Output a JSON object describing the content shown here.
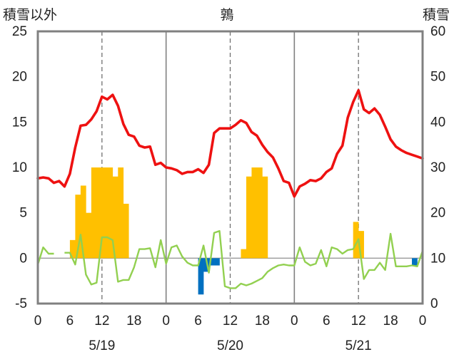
{
  "header": {
    "left_axis_title": "積雪以外",
    "center_title": "鶉",
    "right_axis_title": "積雪"
  },
  "chart_data": {
    "type": "bar+line",
    "title": "鶉",
    "y_left": {
      "label": "積雪以外",
      "lim": [
        -5,
        25
      ],
      "ticks": [
        -5,
        0,
        5,
        10,
        15,
        20,
        25
      ]
    },
    "y_right": {
      "label": "積雪",
      "lim": [
        0,
        60
      ],
      "ticks": [
        0,
        10,
        20,
        30,
        40,
        50,
        60
      ]
    },
    "x": {
      "lim": [
        0,
        72
      ],
      "tick_hours": [
        0,
        6,
        12,
        18,
        24,
        30,
        36,
        42,
        48,
        54,
        60,
        66,
        72
      ],
      "tick_labels": [
        "0",
        "6",
        "12",
        "18",
        "0",
        "6",
        "12",
        "18",
        "0",
        "6",
        "12",
        "18",
        "0"
      ],
      "dates": [
        "5/19",
        "5/20",
        "5/21"
      ],
      "date_hours": [
        12,
        36,
        60
      ]
    },
    "grid": {
      "day_lines": [
        24,
        48
      ],
      "dashed_lines": [
        12,
        36,
        60
      ]
    },
    "colors": {
      "temperature": "#ee1111",
      "precipitation": "#ffc000",
      "sunshine": "#92d050",
      "wind": "#0070c0",
      "frame": "#808080"
    },
    "precipitation": [
      [
        6,
        2
      ],
      [
        7,
        7
      ],
      [
        8,
        8
      ],
      [
        9,
        5
      ],
      [
        10,
        10
      ],
      [
        11,
        10
      ],
      [
        12,
        10
      ],
      [
        13,
        10
      ],
      [
        14,
        9
      ],
      [
        15,
        10
      ],
      [
        16,
        6
      ],
      [
        38,
        1
      ],
      [
        39,
        9
      ],
      [
        40,
        10
      ],
      [
        41,
        10
      ],
      [
        42,
        9
      ],
      [
        59,
        4
      ],
      [
        60,
        3
      ]
    ],
    "wind": [
      [
        30,
        -4.0
      ],
      [
        31,
        -1.5
      ],
      [
        32,
        -0.8
      ],
      [
        33,
        -0.8
      ],
      [
        70,
        -0.8
      ]
    ],
    "temperature": [
      [
        0,
        8.8
      ],
      [
        1,
        8.9
      ],
      [
        2,
        8.8
      ],
      [
        3,
        8.3
      ],
      [
        4,
        8.5
      ],
      [
        5,
        7.9
      ],
      [
        6,
        9.3
      ],
      [
        7,
        12.2
      ],
      [
        8,
        14.6
      ],
      [
        9,
        14.7
      ],
      [
        10,
        15.3
      ],
      [
        11,
        16.2
      ],
      [
        12,
        17.8
      ],
      [
        13,
        17.5
      ],
      [
        14,
        18.0
      ],
      [
        15,
        16.8
      ],
      [
        16,
        14.8
      ],
      [
        17,
        13.6
      ],
      [
        18,
        13.4
      ],
      [
        19,
        12.4
      ],
      [
        20,
        12.2
      ],
      [
        21,
        12.3
      ],
      [
        22,
        10.3
      ],
      [
        23,
        10.5
      ],
      [
        24,
        10.0
      ],
      [
        25,
        9.9
      ],
      [
        26,
        9.7
      ],
      [
        27,
        9.3
      ],
      [
        28,
        9.5
      ],
      [
        29,
        9.5
      ],
      [
        30,
        9.8
      ],
      [
        31,
        9.4
      ],
      [
        32,
        10.3
      ],
      [
        33,
        13.8
      ],
      [
        34,
        14.3
      ],
      [
        35,
        14.3
      ],
      [
        36,
        14.3
      ],
      [
        37,
        14.7
      ],
      [
        38,
        15.2
      ],
      [
        39,
        14.9
      ],
      [
        40,
        13.9
      ],
      [
        41,
        13.5
      ],
      [
        42,
        12.5
      ],
      [
        43,
        11.7
      ],
      [
        44,
        11.1
      ],
      [
        45,
        9.9
      ],
      [
        46,
        8.5
      ],
      [
        47,
        8.3
      ],
      [
        48,
        6.8
      ],
      [
        49,
        7.9
      ],
      [
        50,
        8.2
      ],
      [
        51,
        8.6
      ],
      [
        52,
        8.5
      ],
      [
        53,
        8.8
      ],
      [
        54,
        9.5
      ],
      [
        55,
        9.9
      ],
      [
        56,
        11.5
      ],
      [
        57,
        12.4
      ],
      [
        58,
        15.5
      ],
      [
        59,
        17.2
      ],
      [
        60,
        18.5
      ],
      [
        61,
        16.4
      ],
      [
        62,
        16.0
      ],
      [
        63,
        16.5
      ],
      [
        64,
        15.8
      ],
      [
        65,
        14.5
      ],
      [
        66,
        13.1
      ],
      [
        67,
        12.3
      ],
      [
        68,
        11.9
      ],
      [
        69,
        11.6
      ],
      [
        70,
        11.4
      ],
      [
        71,
        11.2
      ],
      [
        72,
        11.0
      ]
    ],
    "sunshine_segments": [
      [
        [
          0,
          -0.7
        ],
        [
          1,
          1.2
        ],
        [
          2,
          0.5
        ],
        [
          3,
          0.5
        ]
      ],
      [
        [
          5,
          0.6
        ],
        [
          6,
          0.6
        ],
        [
          7,
          -0.7
        ],
        [
          8,
          2.6
        ],
        [
          9,
          -1.8
        ],
        [
          10,
          -2.9
        ],
        [
          11,
          -2.7
        ],
        [
          12,
          2.3
        ],
        [
          13,
          2.3
        ],
        [
          14,
          2.0
        ],
        [
          15,
          -2.6
        ],
        [
          16,
          -2.4
        ],
        [
          17,
          -2.4
        ],
        [
          18,
          -1.0
        ],
        [
          19,
          1.0
        ],
        [
          20,
          1.0
        ],
        [
          21,
          1.1
        ],
        [
          22,
          -1.0
        ],
        [
          23,
          2.0
        ],
        [
          24,
          -0.6
        ],
        [
          25,
          1.2
        ],
        [
          26,
          1.4
        ],
        [
          27,
          0.2
        ],
        [
          28,
          -0.5
        ],
        [
          29,
          -0.8
        ],
        [
          30,
          -0.8
        ],
        [
          31,
          1.4
        ],
        [
          32,
          -1.6
        ],
        [
          33,
          2.8
        ],
        [
          34,
          3.0
        ],
        [
          35,
          -3.1
        ],
        [
          36,
          -3.3
        ],
        [
          37,
          -3.3
        ],
        [
          38,
          -2.8
        ],
        [
          39,
          -3.0
        ],
        [
          40,
          -2.8
        ],
        [
          41,
          -2.5
        ],
        [
          42,
          -2.2
        ],
        [
          43,
          -1.5
        ],
        [
          44,
          -1.1
        ],
        [
          45,
          -0.8
        ],
        [
          46,
          -0.7
        ],
        [
          47,
          -0.8
        ],
        [
          48,
          -0.8
        ],
        [
          49,
          1.2
        ],
        [
          50,
          -0.4
        ],
        [
          51,
          -0.8
        ],
        [
          52,
          -0.6
        ],
        [
          53,
          0.9
        ],
        [
          54,
          -0.9
        ],
        [
          55,
          1.2
        ],
        [
          56,
          1.0
        ],
        [
          57,
          0.5
        ],
        [
          58,
          0.9
        ],
        [
          59,
          1.0
        ],
        [
          60,
          2.1
        ],
        [
          61,
          -2.3
        ],
        [
          62,
          -1.3
        ],
        [
          63,
          -1.3
        ],
        [
          64,
          -0.5
        ],
        [
          65,
          -1.3
        ],
        [
          66,
          2.7
        ],
        [
          67,
          -0.9
        ],
        [
          68,
          -0.9
        ],
        [
          69,
          -0.9
        ],
        [
          70,
          -0.8
        ],
        [
          71,
          -0.9
        ],
        [
          72,
          0.8
        ]
      ]
    ]
  }
}
